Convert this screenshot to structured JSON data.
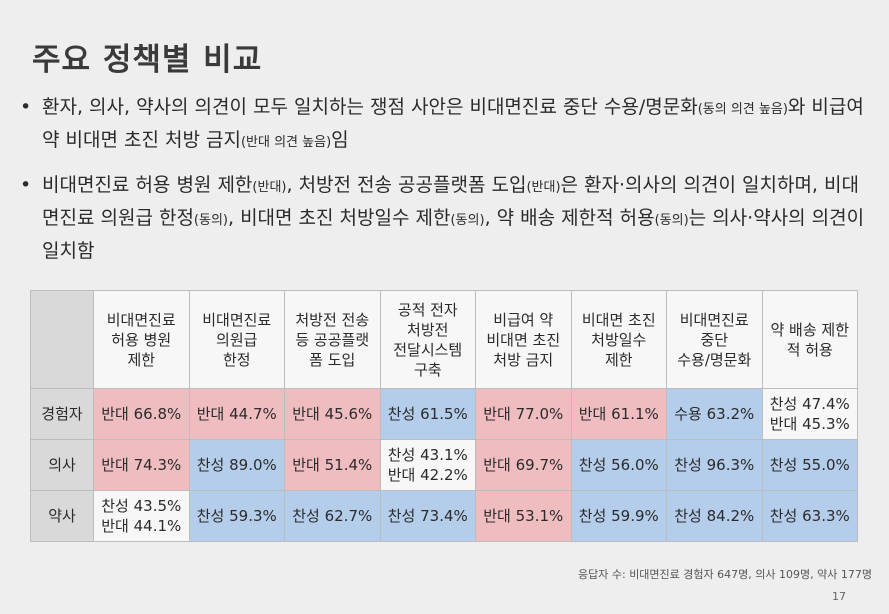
{
  "title": "주요 정책별 비교",
  "bullets": [
    {
      "main": "환자, 의사, 약사의 의견이 모두 일치하는 쟁점 사안은 비대면진료 중단 수용/명문화",
      "note1": "(동의 의견 높음)",
      "mid": "와 비급여 약 비대면 초진 처방 금지",
      "note2": "(반대 의견 높음)",
      "end": "임"
    },
    {
      "p1": "비대면진료 허용 병원 제한",
      "n1": "(반대)",
      "p2": ", 처방전 전송 공공플랫폼 도입",
      "n2": "(반대)",
      "p3": "은 환자·의사의 의견이 일치하며, 비대면진료 의원급 한정",
      "n3": "(동의)",
      "p4": ", 비대면 초진 처방일수 제한",
      "n4": "(동의)",
      "p5": ", 약 배송 제한적 허용",
      "n5": "(동의)",
      "p6": "는 의사·약사의 의견이 일치함"
    }
  ],
  "table": {
    "columns": [
      [
        "비대면진료",
        "허용 병원",
        "제한"
      ],
      [
        "비대면진료",
        "의원급",
        "한정"
      ],
      [
        "처방전 전송",
        "등 공공플랫",
        "폼 도입"
      ],
      [
        "공적 전자",
        "처방전",
        "전달시스템",
        "구축"
      ],
      [
        "비급여 약",
        "비대면 초진",
        "처방 금지"
      ],
      [
        "비대면 초진",
        "처방일수",
        "제한"
      ],
      [
        "비대면진료",
        "중단",
        "수용/명문화"
      ],
      [
        "약 배송 제한",
        "적 허용"
      ]
    ],
    "rows": [
      {
        "label": "경험자",
        "cells": [
          {
            "lines": [
              "반대 66.8%"
            ],
            "color": "pink"
          },
          {
            "lines": [
              "반대 44.7%"
            ],
            "color": "pink"
          },
          {
            "lines": [
              "반대 45.6%"
            ],
            "color": "pink"
          },
          {
            "lines": [
              "찬성 61.5%"
            ],
            "color": "blue"
          },
          {
            "lines": [
              "반대 77.0%"
            ],
            "color": "pink"
          },
          {
            "lines": [
              "반대 61.1%"
            ],
            "color": "pink"
          },
          {
            "lines": [
              "수용 63.2%"
            ],
            "color": "blue"
          },
          {
            "lines": [
              "찬성 47.4%",
              "반대 45.3%"
            ],
            "color": "white"
          }
        ]
      },
      {
        "label": "의사",
        "cells": [
          {
            "lines": [
              "반대 74.3%"
            ],
            "color": "pink"
          },
          {
            "lines": [
              "찬성 89.0%"
            ],
            "color": "blue"
          },
          {
            "lines": [
              "반대 51.4%"
            ],
            "color": "pink"
          },
          {
            "lines": [
              "찬성 43.1%",
              "반대 42.2%"
            ],
            "color": "white"
          },
          {
            "lines": [
              "반대 69.7%"
            ],
            "color": "pink"
          },
          {
            "lines": [
              "찬성 56.0%"
            ],
            "color": "blue"
          },
          {
            "lines": [
              "찬성 96.3%"
            ],
            "color": "blue"
          },
          {
            "lines": [
              "찬성 55.0%"
            ],
            "color": "blue"
          }
        ]
      },
      {
        "label": "약사",
        "cells": [
          {
            "lines": [
              "찬성 43.5%",
              "반대 44.1%"
            ],
            "color": "white"
          },
          {
            "lines": [
              "찬성 59.3%"
            ],
            "color": "blue"
          },
          {
            "lines": [
              "찬성 62.7%"
            ],
            "color": "blue"
          },
          {
            "lines": [
              "찬성 73.4%"
            ],
            "color": "blue"
          },
          {
            "lines": [
              "반대 53.1%"
            ],
            "color": "pink"
          },
          {
            "lines": [
              "찬성 59.9%"
            ],
            "color": "blue"
          },
          {
            "lines": [
              "찬성 84.2%"
            ],
            "color": "blue"
          },
          {
            "lines": [
              "찬성 63.3%"
            ],
            "color": "blue"
          }
        ]
      }
    ]
  },
  "footnote": {
    "label": "응답자 수:",
    "text": "비대면진료 경험자 647명, 의사 109명, 약사 177명"
  },
  "page_number": "17",
  "colors": {
    "oppose": "#efbcc0",
    "support": "#b4cdea",
    "mixed": "#f7f7f7"
  }
}
